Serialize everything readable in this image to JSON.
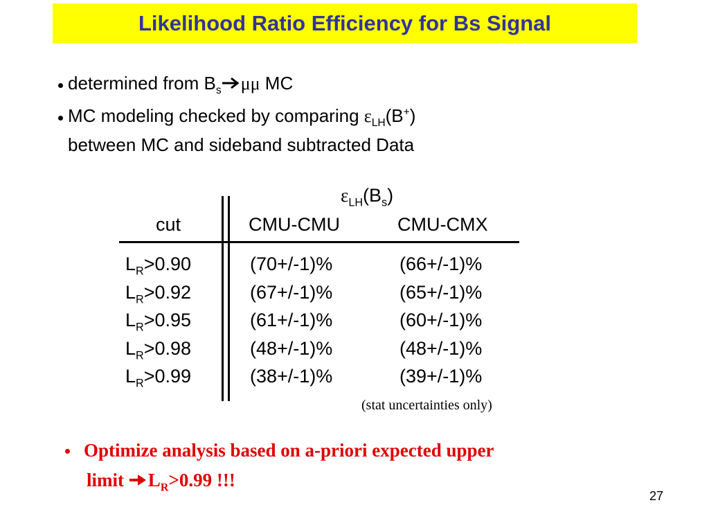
{
  "title": "Likelihood Ratio Efficiency for Bs Signal",
  "bullets": [
    {
      "text": "determined from B",
      "sub": "s",
      "after_arrow": "μμ",
      "end": " MC"
    },
    {
      "text": "MC modeling checked by comparing ",
      "symbol": "ε",
      "sub": "LH",
      "mid": "(B",
      "sup": "+",
      "end": ")",
      "line2": "between MC and sideband subtracted Data"
    }
  ],
  "table": {
    "group_header": {
      "symbol": "ε",
      "sub": "LH",
      "mid": "(B",
      "sub2": "s",
      "end": ")"
    },
    "columns": [
      "cut",
      "CMU-CMU",
      "CMU-CMX"
    ],
    "rows": [
      {
        "cut": {
          "main": "L",
          "sub": "R",
          "rest": ">0.90"
        },
        "cmu_cmu": "(70+/-1)%",
        "cmu_cmx": "(66+/-1)%"
      },
      {
        "cut": {
          "main": "L",
          "sub": "R",
          "rest": ">0.92"
        },
        "cmu_cmu": "(67+/-1)%",
        "cmu_cmx": "(65+/-1)%"
      },
      {
        "cut": {
          "main": "L",
          "sub": "R",
          "rest": ">0.95"
        },
        "cmu_cmu": "(61+/-1)%",
        "cmu_cmx": "(60+/-1)%"
      },
      {
        "cut": {
          "main": "L",
          "sub": "R",
          "rest": ">0.98"
        },
        "cmu_cmu": "(48+/-1)%",
        "cmu_cmx": "(48+/-1)%"
      },
      {
        "cut": {
          "main": "L",
          "sub": "R",
          "rest": ">0.99"
        },
        "cmu_cmu": "(38+/-1)%",
        "cmu_cmx": "(39+/-1)%"
      }
    ],
    "note": "(stat uncertainties only)"
  },
  "conclusion": {
    "line1": "Optimize analysis based on a-priori expected upper",
    "line2": "limit ",
    "main": "L",
    "sub": "R",
    "rest": ">0.99 !!!"
  },
  "page_number": "27"
}
